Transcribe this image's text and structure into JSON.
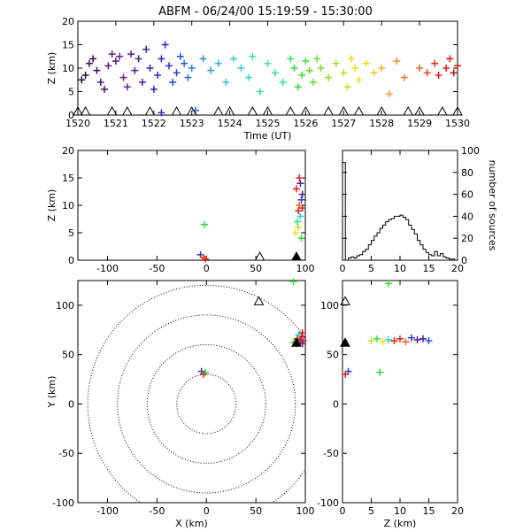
{
  "title": "ABFM - 06/24/00 15:19:59 - 15:30:00",
  "chart_data": [
    {
      "id": "time-height",
      "type": "scatter",
      "xlabel": "Time (UT)",
      "ylabel": "Z (km)",
      "xlim": [
        1520,
        1530
      ],
      "ylim": [
        0,
        20
      ],
      "xticks": [
        "1520",
        "1521",
        "1522",
        "1523",
        "1524",
        "1525",
        "1526",
        "1527",
        "1528",
        "1529",
        "1530"
      ],
      "yticks": [
        "0",
        "5",
        "10",
        "15",
        "20"
      ],
      "marker": "plus",
      "color_by": "time",
      "points": [
        {
          "x": 1520.1,
          "y": 7.5,
          "c": "#2a0a4a"
        },
        {
          "x": 1520.2,
          "y": 8.5,
          "c": "#2a0a4a"
        },
        {
          "x": 1520.3,
          "y": 11,
          "c": "#3c0a5c"
        },
        {
          "x": 1520.4,
          "y": 12,
          "c": "#3c0a5c"
        },
        {
          "x": 1520.5,
          "y": 9.5,
          "c": "#4a1070"
        },
        {
          "x": 1520.6,
          "y": 7,
          "c": "#4a1070"
        },
        {
          "x": 1520.7,
          "y": 5.5,
          "c": "#4a1070"
        },
        {
          "x": 1520.8,
          "y": 10.5,
          "c": "#5a1a80"
        },
        {
          "x": 1520.9,
          "y": 13,
          "c": "#5a1a80"
        },
        {
          "x": 1521.0,
          "y": 11.5,
          "c": "#5a1a80"
        },
        {
          "x": 1521.1,
          "y": 12.5,
          "c": "#6a2090"
        },
        {
          "x": 1521.2,
          "y": 8,
          "c": "#6a2090"
        },
        {
          "x": 1521.3,
          "y": 6,
          "c": "#6a2090"
        },
        {
          "x": 1521.4,
          "y": 13,
          "c": "#5a1a90"
        },
        {
          "x": 1521.5,
          "y": 9.5,
          "c": "#5a1a90"
        },
        {
          "x": 1521.6,
          "y": 12,
          "c": "#4a1aa0"
        },
        {
          "x": 1521.7,
          "y": 7,
          "c": "#4a1aa0"
        },
        {
          "x": 1521.8,
          "y": 14,
          "c": "#4a1aa0"
        },
        {
          "x": 1521.9,
          "y": 10,
          "c": "#3a20b0"
        },
        {
          "x": 1522.0,
          "y": 5.5,
          "c": "#3a20b0"
        },
        {
          "x": 1522.1,
          "y": 8.5,
          "c": "#2a2ac0"
        },
        {
          "x": 1522.2,
          "y": 12,
          "c": "#2a2ac0"
        },
        {
          "x": 1522.3,
          "y": 15,
          "c": "#2a2ad0"
        },
        {
          "x": 1522.4,
          "y": 10.5,
          "c": "#2a30d0"
        },
        {
          "x": 1522.5,
          "y": 7,
          "c": "#2a40d0"
        },
        {
          "x": 1522.6,
          "y": 9,
          "c": "#2a40d0"
        },
        {
          "x": 1522.7,
          "y": 12.5,
          "c": "#2a50e0"
        },
        {
          "x": 1522.8,
          "y": 11,
          "c": "#2a60e0"
        },
        {
          "x": 1522.9,
          "y": 8,
          "c": "#2a70e0"
        },
        {
          "x": 1523.0,
          "y": 10,
          "c": "#2a80e0"
        },
        {
          "x": 1523.1,
          "y": 1,
          "c": "#2a60e0"
        },
        {
          "x": 1522.2,
          "y": 0.5,
          "c": "#2a30d0"
        },
        {
          "x": 1523.3,
          "y": 12,
          "c": "#2a90e0"
        },
        {
          "x": 1523.5,
          "y": 9.5,
          "c": "#2aa0e0"
        },
        {
          "x": 1523.7,
          "y": 11,
          "c": "#30b0e0"
        },
        {
          "x": 1523.9,
          "y": 7,
          "c": "#30c0e0"
        },
        {
          "x": 1524.1,
          "y": 12,
          "c": "#30c8d8"
        },
        {
          "x": 1524.3,
          "y": 10,
          "c": "#30d0d0"
        },
        {
          "x": 1524.5,
          "y": 8,
          "c": "#30d8c8"
        },
        {
          "x": 1524.6,
          "y": 12.5,
          "c": "#30d8c0"
        },
        {
          "x": 1524.8,
          "y": 5,
          "c": "#30d8b8"
        },
        {
          "x": 1525.0,
          "y": 11,
          "c": "#30e0b0"
        },
        {
          "x": 1525.2,
          "y": 9,
          "c": "#30e0a0"
        },
        {
          "x": 1525.4,
          "y": 7,
          "c": "#30e080"
        },
        {
          "x": 1525.6,
          "y": 12,
          "c": "#30e060"
        },
        {
          "x": 1525.7,
          "y": 10,
          "c": "#30e040"
        },
        {
          "x": 1525.8,
          "y": 6,
          "c": "#30e030"
        },
        {
          "x": 1525.9,
          "y": 8.5,
          "c": "#40e020"
        },
        {
          "x": 1526.0,
          "y": 11.5,
          "c": "#40e020"
        },
        {
          "x": 1526.1,
          "y": 9.5,
          "c": "#50e020"
        },
        {
          "x": 1526.2,
          "y": 7,
          "c": "#60e020"
        },
        {
          "x": 1526.3,
          "y": 12,
          "c": "#70e020"
        },
        {
          "x": 1526.4,
          "y": 10,
          "c": "#80e020"
        },
        {
          "x": 1526.6,
          "y": 8,
          "c": "#90e020"
        },
        {
          "x": 1526.8,
          "y": 11,
          "c": "#a0e020"
        },
        {
          "x": 1527.0,
          "y": 9,
          "c": "#b8e020"
        },
        {
          "x": 1527.1,
          "y": 6,
          "c": "#c8e020"
        },
        {
          "x": 1527.2,
          "y": 12,
          "c": "#d8e020"
        },
        {
          "x": 1527.3,
          "y": 10,
          "c": "#e0e020"
        },
        {
          "x": 1527.4,
          "y": 7.5,
          "c": "#e8e020"
        },
        {
          "x": 1527.6,
          "y": 11,
          "c": "#f0d820"
        },
        {
          "x": 1527.8,
          "y": 9,
          "c": "#f0c820"
        },
        {
          "x": 1528.0,
          "y": 10,
          "c": "#f0b020"
        },
        {
          "x": 1528.2,
          "y": 4.5,
          "c": "#f0a020"
        },
        {
          "x": 1528.4,
          "y": 11.5,
          "c": "#f09020"
        },
        {
          "x": 1528.6,
          "y": 8,
          "c": "#f08020"
        },
        {
          "x": 1529.0,
          "y": 10,
          "c": "#f06020"
        },
        {
          "x": 1529.2,
          "y": 9,
          "c": "#f04020"
        },
        {
          "x": 1529.4,
          "y": 11,
          "c": "#f03020"
        },
        {
          "x": 1529.5,
          "y": 8.5,
          "c": "#e82020"
        },
        {
          "x": 1529.7,
          "y": 10,
          "c": "#e01818"
        },
        {
          "x": 1529.8,
          "y": 12,
          "c": "#e01818"
        },
        {
          "x": 1529.9,
          "y": 9,
          "c": "#d81010"
        },
        {
          "x": 1530.0,
          "y": 10.5,
          "c": "#d81010"
        }
      ],
      "ground_markers": [
        1520.0,
        1520.2,
        1520.9,
        1521.3,
        1521.9,
        1522.6,
        1523.0,
        1523.7,
        1524.0,
        1524.6,
        1525.0,
        1525.6,
        1526.0,
        1526.6,
        1527.0,
        1527.4,
        1528.0,
        1528.7,
        1529.0,
        1529.6,
        1530.0
      ]
    },
    {
      "id": "x-z",
      "type": "scatter",
      "xlabel": "",
      "ylabel": "Z (km)",
      "xlim": [
        -130,
        100
      ],
      "ylim": [
        0,
        20
      ],
      "xticks": [
        "-100",
        "-50",
        "0",
        "50",
        "100"
      ],
      "yticks": [
        "0",
        "5",
        "10",
        "15",
        "20"
      ],
      "marker": "plus",
      "points": [
        {
          "x": -2,
          "y": 6.5,
          "c": "#30e030"
        },
        {
          "x": -6,
          "y": 1,
          "c": "#2a40d0"
        },
        {
          "x": -1,
          "y": 0.2,
          "c": "#e82020"
        },
        {
          "x": -3,
          "y": 0.5,
          "c": "#f04020"
        },
        {
          "x": 90,
          "y": 5,
          "c": "#f0e020"
        },
        {
          "x": 92,
          "y": 7,
          "c": "#30e060"
        },
        {
          "x": 93,
          "y": 9,
          "c": "#e82020"
        },
        {
          "x": 94,
          "y": 10,
          "c": "#f06020"
        },
        {
          "x": 95,
          "y": 8,
          "c": "#30d0d0"
        },
        {
          "x": 96,
          "y": 11,
          "c": "#2a40d0"
        },
        {
          "x": 97,
          "y": 12,
          "c": "#5a1a80"
        },
        {
          "x": 91,
          "y": 13,
          "c": "#e01818"
        },
        {
          "x": 95,
          "y": 14,
          "c": "#4a1aa0"
        },
        {
          "x": 93,
          "y": 6,
          "c": "#c8e020"
        },
        {
          "x": 97,
          "y": 9.5,
          "c": "#e01818"
        },
        {
          "x": 96,
          "y": 4,
          "c": "#30e030"
        },
        {
          "x": 94,
          "y": 15,
          "c": "#e82020"
        }
      ],
      "ground_markers": [
        {
          "x": 54,
          "filled": false
        },
        {
          "x": 91,
          "filled": true
        }
      ]
    },
    {
      "id": "altitude-histogram",
      "type": "bar",
      "xlabel": "",
      "ylabel": "number of sources",
      "xlim": [
        0,
        20
      ],
      "ylim": [
        0,
        100
      ],
      "xticks": [
        "0",
        "5",
        "10",
        "15",
        "20"
      ],
      "yticks": [
        "0",
        "20",
        "40",
        "60",
        "80",
        "100"
      ],
      "bin_width": 0.5,
      "bins": [
        0,
        0.5,
        1,
        1.5,
        2,
        2.5,
        3,
        3.5,
        4,
        4.5,
        5,
        5.5,
        6,
        6.5,
        7,
        7.5,
        8,
        8.5,
        9,
        9.5,
        10,
        10.5,
        11,
        11.5,
        12,
        12.5,
        13,
        13.5,
        14,
        14.5,
        15,
        15.5,
        16,
        16.5,
        17,
        17.5,
        18,
        18.5,
        19,
        19.5
      ],
      "counts": [
        89,
        0,
        2,
        3,
        2,
        4,
        5,
        8,
        10,
        14,
        18,
        22,
        25,
        29,
        32,
        35,
        37,
        38,
        40,
        40,
        41,
        39,
        37,
        32,
        28,
        24,
        18,
        14,
        10,
        7,
        5,
        4,
        8,
        4,
        6,
        3,
        2,
        1,
        1,
        0
      ]
    },
    {
      "id": "plan-view",
      "type": "scatter",
      "xlabel": "X (km)",
      "ylabel": "Y (km)",
      "xlim": [
        -130,
        100
      ],
      "ylim": [
        -100,
        125
      ],
      "xticks": [
        "-100",
        "-50",
        "0",
        "50",
        "100"
      ],
      "yticks": [
        "-100",
        "-50",
        "0",
        "50",
        "100"
      ],
      "marker": "plus",
      "range_rings_km": [
        30,
        60,
        90,
        120
      ],
      "points": [
        {
          "x": -5,
          "y": 33,
          "c": "#2a40d0"
        },
        {
          "x": -1,
          "y": 32,
          "c": "#30e030"
        },
        {
          "x": -3,
          "y": 30,
          "c": "#e82020"
        },
        {
          "x": 88,
          "y": 62,
          "c": "#30e060"
        },
        {
          "x": 90,
          "y": 64,
          "c": "#f0e020"
        },
        {
          "x": 92,
          "y": 66,
          "c": "#e82020"
        },
        {
          "x": 94,
          "y": 63,
          "c": "#f06020"
        },
        {
          "x": 95,
          "y": 65,
          "c": "#2a40d0"
        },
        {
          "x": 96,
          "y": 68,
          "c": "#e01818"
        },
        {
          "x": 97,
          "y": 61,
          "c": "#5a1a80"
        },
        {
          "x": 98,
          "y": 64,
          "c": "#e82020"
        },
        {
          "x": 93,
          "y": 70,
          "c": "#30d0d0"
        },
        {
          "x": 91,
          "y": 60,
          "c": "#c8e020"
        },
        {
          "x": 97,
          "y": 72,
          "c": "#e01818"
        },
        {
          "x": 88,
          "y": 124,
          "c": "#30e030"
        }
      ],
      "stations": [
        {
          "x": 53,
          "y": 104,
          "filled": false
        },
        {
          "x": 91,
          "y": 62,
          "filled": true
        }
      ]
    },
    {
      "id": "z-y",
      "type": "scatter",
      "xlabel": "Z (km)",
      "ylabel": "",
      "xlim": [
        0,
        20
      ],
      "ylim": [
        -100,
        125
      ],
      "xticks": [
        "0",
        "5",
        "10",
        "15",
        "20"
      ],
      "yticks": [
        "-100",
        "-50",
        "0",
        "50",
        "100"
      ],
      "marker": "plus",
      "points": [
        {
          "x": 1,
          "y": 33,
          "c": "#2a40d0"
        },
        {
          "x": 0.5,
          "y": 30,
          "c": "#e82020"
        },
        {
          "x": 6.5,
          "y": 32,
          "c": "#30e030"
        },
        {
          "x": 5,
          "y": 64,
          "c": "#c8e020"
        },
        {
          "x": 6,
          "y": 66,
          "c": "#30e060"
        },
        {
          "x": 7,
          "y": 63,
          "c": "#f0e020"
        },
        {
          "x": 8,
          "y": 65,
          "c": "#30d0d0"
        },
        {
          "x": 9,
          "y": 64,
          "c": "#e82020"
        },
        {
          "x": 10,
          "y": 66,
          "c": "#e82020"
        },
        {
          "x": 11,
          "y": 63,
          "c": "#f06020"
        },
        {
          "x": 12,
          "y": 67,
          "c": "#2a40d0"
        },
        {
          "x": 13,
          "y": 65,
          "c": "#5a1a80"
        },
        {
          "x": 14,
          "y": 66,
          "c": "#4a1aa0"
        },
        {
          "x": 15,
          "y": 64,
          "c": "#2a50e0"
        },
        {
          "x": 8,
          "y": 122,
          "c": "#30e030"
        }
      ],
      "ground_markers": [
        {
          "y": 104,
          "filled": false
        },
        {
          "y": 62,
          "filled": true
        }
      ]
    }
  ]
}
